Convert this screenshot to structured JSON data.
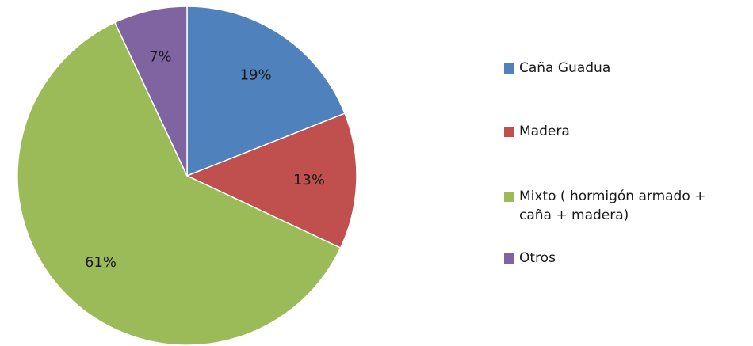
{
  "chart_data": {
    "type": "pie",
    "title": "",
    "slices": [
      {
        "label": "Caña Guadua",
        "value": 19,
        "display": "19%",
        "color": "#4f81bd"
      },
      {
        "label": "Madera",
        "value": 13,
        "display": "13%",
        "color": "#c0504d"
      },
      {
        "label": "Mixto ( hormigón armado +\ncaña + madera)",
        "value": 61,
        "display": "61%",
        "color": "#9bbb59"
      },
      {
        "label": "Otros",
        "value": 7,
        "display": "7%",
        "color": "#8064a2"
      }
    ],
    "legend_position": "right",
    "start_angle": "12 o'clock",
    "direction": "clockwise"
  }
}
